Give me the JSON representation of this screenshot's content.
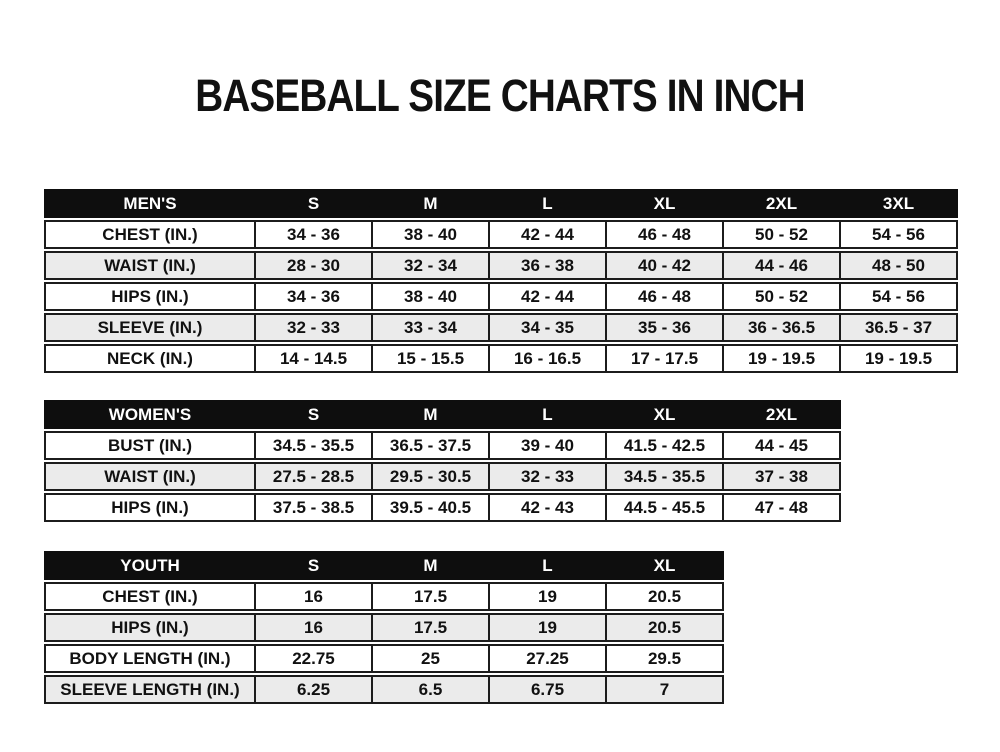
{
  "page": {
    "title": "BASEBALL SIZE CHARTS IN INCH"
  },
  "colors": {
    "background": "#ffffff",
    "header_bg": "#0e0e0e",
    "header_text": "#ffffff",
    "row_stripe": "#ebebeb",
    "border": "#1c1c1c",
    "text": "#111111"
  },
  "tables": [
    {
      "name": "mens",
      "header": [
        "MEN'S",
        "S",
        "M",
        "L",
        "XL",
        "2XL",
        "3XL"
      ],
      "rows": [
        [
          "CHEST (IN.)",
          "34 - 36",
          "38 - 40",
          "42 - 44",
          "46 - 48",
          "50 - 52",
          "54 - 56"
        ],
        [
          "WAIST (IN.)",
          "28 - 30",
          "32 - 34",
          "36 - 38",
          "40 - 42",
          "44 - 46",
          "48 - 50"
        ],
        [
          "HIPS (IN.)",
          "34 - 36",
          "38 - 40",
          "42 - 44",
          "46 - 48",
          "50 - 52",
          "54 - 56"
        ],
        [
          "SLEEVE (IN.)",
          "32 - 33",
          "33 - 34",
          "34 - 35",
          "35 - 36",
          "36 - 36.5",
          "36.5 - 37"
        ],
        [
          "NECK (IN.)",
          "14 - 14.5",
          "15 - 15.5",
          "16 - 16.5",
          "17 - 17.5",
          "19 - 19.5",
          "19 - 19.5"
        ]
      ]
    },
    {
      "name": "womens",
      "header": [
        "WOMEN'S",
        "S",
        "M",
        "L",
        "XL",
        "2XL"
      ],
      "rows": [
        [
          "BUST (IN.)",
          "34.5 - 35.5",
          "36.5 - 37.5",
          "39 - 40",
          "41.5 - 42.5",
          "44 - 45"
        ],
        [
          "WAIST (IN.)",
          "27.5 - 28.5",
          "29.5 - 30.5",
          "32 - 33",
          "34.5 - 35.5",
          "37 - 38"
        ],
        [
          "HIPS (IN.)",
          "37.5 - 38.5",
          "39.5 - 40.5",
          "42 - 43",
          "44.5 - 45.5",
          "47 - 48"
        ]
      ]
    },
    {
      "name": "youth",
      "header": [
        "YOUTH",
        "S",
        "M",
        "L",
        "XL"
      ],
      "rows": [
        [
          "CHEST (IN.)",
          "16",
          "17.5",
          "19",
          "20.5"
        ],
        [
          "HIPS (IN.)",
          "16",
          "17.5",
          "19",
          "20.5"
        ],
        [
          "BODY LENGTH (IN.)",
          "22.75",
          "25",
          "27.25",
          "29.5"
        ],
        [
          "SLEEVE LENGTH (IN.)",
          "6.25",
          "6.5",
          "6.75",
          "7"
        ]
      ]
    }
  ]
}
